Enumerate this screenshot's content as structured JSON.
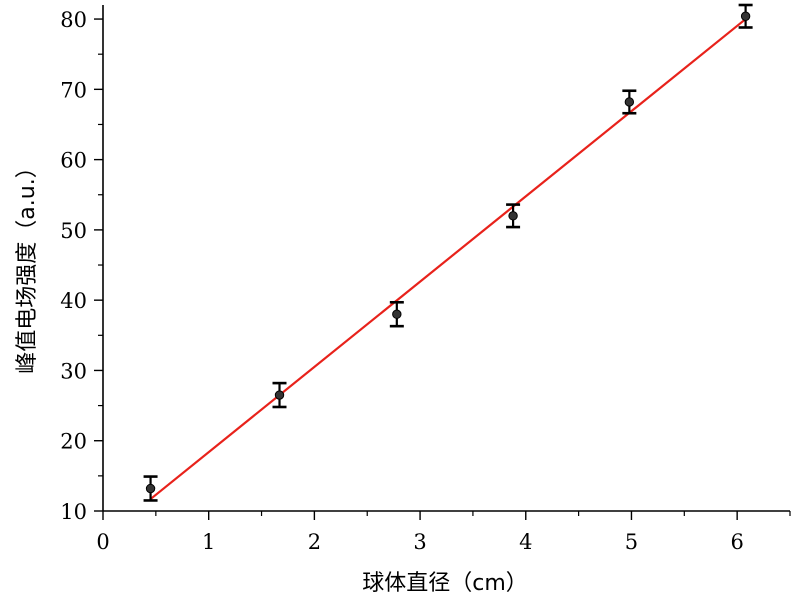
{
  "chart_data": {
    "type": "scatter",
    "xlabel": "球体直径（cm）",
    "ylabel": "峰值电场强度（a.u.）",
    "xlim": [
      0,
      6.5
    ],
    "ylim": [
      10,
      82
    ],
    "x_ticks": [
      0,
      1,
      2,
      3,
      4,
      5,
      6
    ],
    "y_ticks": [
      10,
      20,
      30,
      40,
      50,
      60,
      70,
      80
    ],
    "grid": false,
    "legend": "none",
    "series": [
      {
        "type": "scatter",
        "color": "#000000",
        "points": [
          {
            "x": 0.45,
            "y": 13.2,
            "err": 1.7
          },
          {
            "x": 1.67,
            "y": 26.5,
            "err": 1.7
          },
          {
            "x": 2.78,
            "y": 38.0,
            "err": 1.7
          },
          {
            "x": 3.88,
            "y": 52.0,
            "err": 1.6
          },
          {
            "x": 4.98,
            "y": 68.2,
            "err": 1.6
          },
          {
            "x": 6.08,
            "y": 80.4,
            "err": 1.6
          }
        ]
      },
      {
        "type": "line",
        "color": "#e8221b",
        "points": [
          {
            "x": 0.45,
            "y": 11.7
          },
          {
            "x": 6.08,
            "y": 80.0
          }
        ]
      }
    ]
  }
}
